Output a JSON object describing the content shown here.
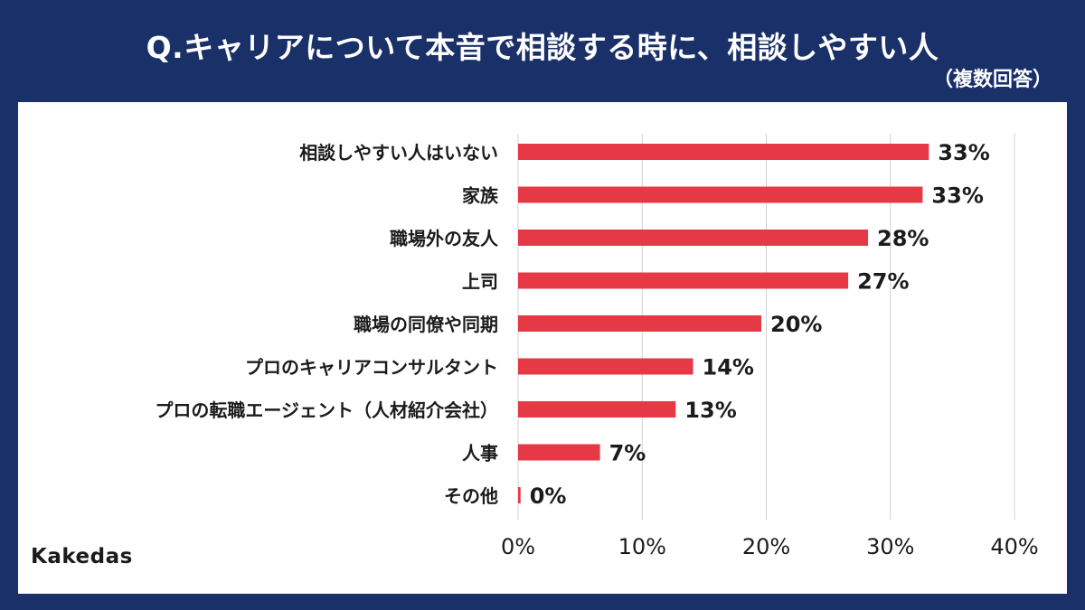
{
  "header": {
    "title": "Q.キャリアについて本音で相談する時に、相談しやすい人",
    "subtitle": "（複数回答）"
  },
  "brand": {
    "logo_text": "Kakedas"
  },
  "colors": {
    "background": "#1a3068",
    "panel": "#ffffff",
    "bar": "#e63946",
    "grid": "#d0d0d0",
    "text": "#1b1b1b"
  },
  "chart_data": {
    "type": "bar",
    "orientation": "horizontal",
    "categories": [
      "相談しやすい人はいない",
      "家族",
      "職場外の友人",
      "上司",
      "職場の同僚や同期",
      "プロのキャリアコンサルタント",
      "プロの転職エージェント（人材紹介会社）",
      "人事",
      "その他"
    ],
    "values": [
      33.1,
      32.6,
      28.2,
      26.6,
      19.6,
      14.1,
      12.7,
      6.6,
      0.2
    ],
    "value_labels": [
      "33%",
      "33%",
      "28%",
      "27%",
      "20%",
      "14%",
      "13%",
      "7%",
      "0%"
    ],
    "xlim": [
      0,
      40
    ],
    "x_ticks": [
      0,
      10,
      20,
      30,
      40
    ],
    "x_tick_labels": [
      "0%",
      "10%",
      "20%",
      "30%",
      "40%"
    ],
    "grid": true,
    "legend": "none"
  }
}
